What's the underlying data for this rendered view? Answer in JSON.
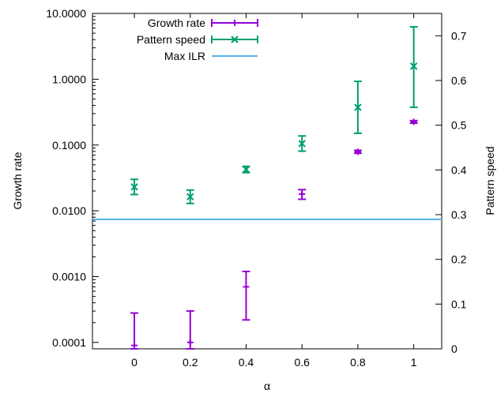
{
  "chart_data": {
    "type": "scatter",
    "x_ticks": [
      "0",
      "0.2",
      "0.4",
      "0.6",
      "0.8",
      "1"
    ],
    "xlim": [
      -0.15,
      1.1
    ],
    "xlabel": "α",
    "ylabel_left": "Growth rate",
    "ylabel_right": "Pattern speed",
    "ylim_left": [
      8e-05,
      10
    ],
    "ylim_right": [
      0,
      0.75
    ],
    "y_left_scale": "log",
    "y_left_ticks": [
      "0.0001",
      "0.0010",
      "0.0100",
      "0.1000",
      "1.0000",
      "10.0000"
    ],
    "y_right_ticks": [
      "0",
      "0.1",
      "0.2",
      "0.3",
      "0.4",
      "0.5",
      "0.6",
      "0.7"
    ],
    "legend_position": "top-left",
    "grid": false,
    "series": [
      {
        "name": "Growth rate",
        "axis": "left",
        "color": "#9400d3",
        "marker": "plus-errorbar",
        "points": [
          {
            "x": 0.0,
            "y": 9e-05,
            "ylow": 8e-05,
            "yhigh": 0.00028
          },
          {
            "x": 0.2,
            "y": 0.0001,
            "ylow": 8e-05,
            "yhigh": 0.0003
          },
          {
            "x": 0.4,
            "y": 0.0007,
            "ylow": 0.00022,
            "yhigh": 0.0012
          },
          {
            "x": 0.6,
            "y": 0.018,
            "ylow": 0.015,
            "yhigh": 0.021
          },
          {
            "x": 0.8,
            "y": 0.079,
            "ylow": 0.075,
            "yhigh": 0.083
          },
          {
            "x": 1.0,
            "y": 0.225,
            "ylow": 0.215,
            "yhigh": 0.235
          }
        ]
      },
      {
        "name": "Pattern speed",
        "axis": "right",
        "color": "#009e73",
        "marker": "x-errorbar",
        "points": [
          {
            "x": 0.0,
            "y": 0.362,
            "ylow": 0.345,
            "yhigh": 0.379
          },
          {
            "x": 0.2,
            "y": 0.34,
            "ylow": 0.325,
            "yhigh": 0.355
          },
          {
            "x": 0.4,
            "y": 0.401,
            "ylow": 0.394,
            "yhigh": 0.408
          },
          {
            "x": 0.6,
            "y": 0.459,
            "ylow": 0.442,
            "yhigh": 0.476
          },
          {
            "x": 0.8,
            "y": 0.54,
            "ylow": 0.482,
            "yhigh": 0.598
          },
          {
            "x": 1.0,
            "y": 0.632,
            "ylow": 0.54,
            "yhigh": 0.72
          }
        ]
      },
      {
        "name": "Max ILR",
        "axis": "left",
        "color": "#56b4e9",
        "marker": "hline",
        "y": 0.0074
      }
    ]
  }
}
